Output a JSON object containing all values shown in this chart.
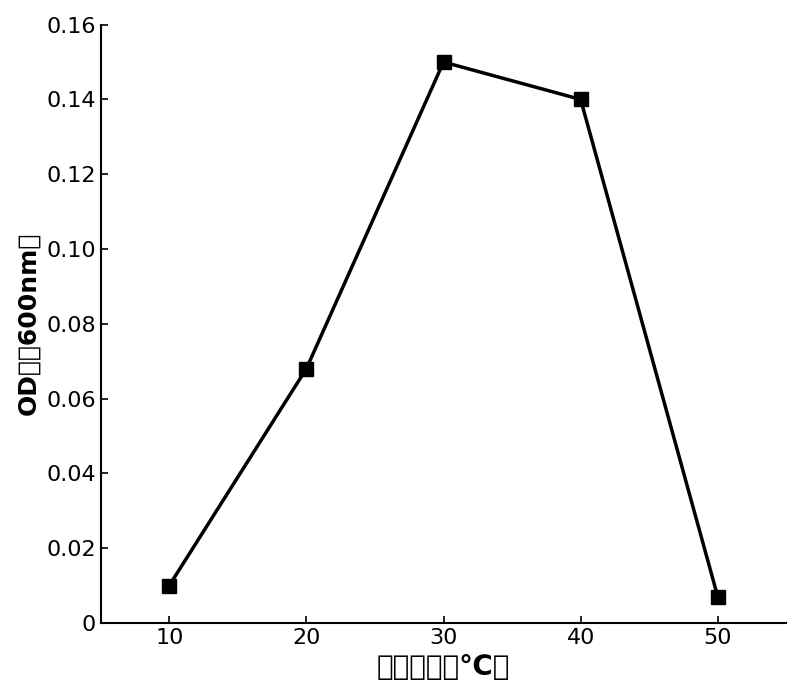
{
  "x": [
    10,
    20,
    30,
    40,
    50
  ],
  "y": [
    0.01,
    0.068,
    0.15,
    0.14,
    0.007
  ],
  "xlabel": "培养温度（℃）",
  "ylabel": "OD値（600nm）",
  "xlim": [
    5,
    55
  ],
  "ylim": [
    0,
    0.16
  ],
  "xticks": [
    10,
    20,
    30,
    40,
    50
  ],
  "yticks": [
    0,
    0.02,
    0.04,
    0.06,
    0.08,
    0.1,
    0.12,
    0.14,
    0.16
  ],
  "line_color": "#000000",
  "marker": "s",
  "marker_size": 10,
  "linewidth": 2.5,
  "xlabel_fontsize": 20,
  "ylabel_fontsize": 18,
  "tick_fontsize": 16,
  "background_color": "#ffffff"
}
